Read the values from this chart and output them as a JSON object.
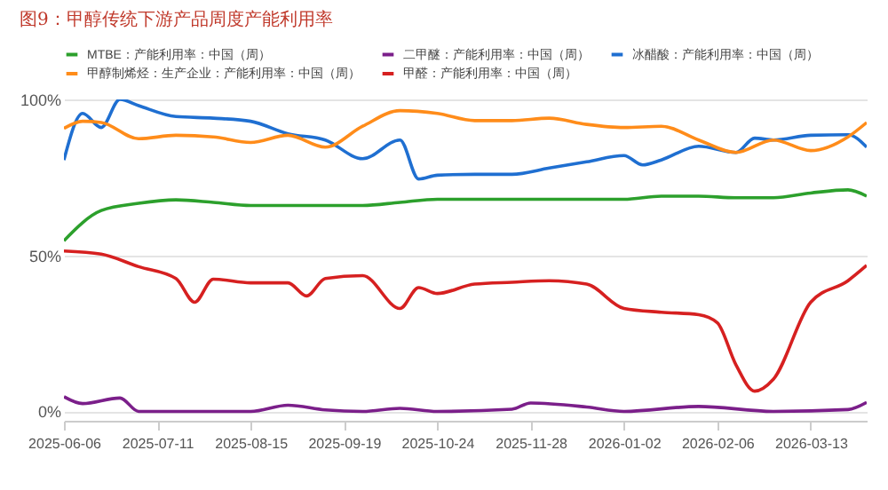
{
  "chart_data": {
    "type": "line",
    "title": "图9：甲醇传统下游产品周度产能利用率",
    "legend": "top",
    "grid": "y",
    "xlim": [
      "2025-06-06",
      "2026-04-03"
    ],
    "xticks": [
      "2025-06-06",
      "2025-07-11",
      "2025-08-15",
      "2025-09-19",
      "2025-10-24",
      "2025-11-28",
      "2026-01-02",
      "2026-02-06",
      "2026-03-13"
    ],
    "ylim": [
      -3,
      100
    ],
    "yticks": [
      {
        "value": 0,
        "label": "0%"
      },
      {
        "value": 50,
        "label": "50%"
      },
      {
        "value": 100,
        "label": "100%"
      }
    ],
    "series": [
      {
        "name": "MTBE：产能利用率：中国（周）",
        "color": "#2ca02c",
        "x": [
          "2025-06-06",
          "2025-06-20",
          "2025-07-04",
          "2025-07-18",
          "2025-08-01",
          "2025-08-15",
          "2025-08-29",
          "2025-09-12",
          "2025-09-26",
          "2025-10-10",
          "2025-10-24",
          "2025-11-07",
          "2025-11-21",
          "2025-12-05",
          "2025-12-19",
          "2026-01-02",
          "2026-01-16",
          "2026-01-30",
          "2026-02-13",
          "2026-02-27",
          "2026-03-13",
          "2026-03-27",
          "2026-04-03"
        ],
        "values": [
          54.7,
          64.4,
          66.7,
          67.8,
          67,
          66,
          66,
          66,
          66,
          67,
          68,
          68,
          68,
          68,
          68,
          68,
          69,
          69,
          68.5,
          68.5,
          70,
          71,
          69
        ]
      },
      {
        "name": "二甲醚：产能利用率：中国（周）",
        "color": "#7b1f8a",
        "x": [
          "2025-06-06",
          "2025-06-13",
          "2025-06-27",
          "2025-07-04",
          "2025-08-01",
          "2025-08-15",
          "2025-08-29",
          "2025-09-12",
          "2025-09-26",
          "2025-10-10",
          "2025-10-24",
          "2025-11-21",
          "2025-11-28",
          "2025-12-19",
          "2026-01-02",
          "2026-01-30",
          "2026-02-27",
          "2026-03-27",
          "2026-04-03"
        ],
        "values": [
          4.7,
          2.5,
          4.3,
          0,
          0,
          0,
          2,
          0.5,
          0,
          1,
          0,
          0.7,
          2.7,
          1.4,
          0,
          1.6,
          0,
          0.6,
          2.9
        ]
      },
      {
        "name": "冰醋酸：产能利用率：中国（周）",
        "color": "#1f6fd1",
        "x": [
          "2025-06-06",
          "2025-06-13",
          "2025-06-20",
          "2025-06-27",
          "2025-07-04",
          "2025-07-18",
          "2025-08-01",
          "2025-08-15",
          "2025-08-29",
          "2025-09-12",
          "2025-09-26",
          "2025-10-10",
          "2025-10-17",
          "2025-10-24",
          "2025-11-07",
          "2025-11-21",
          "2025-12-05",
          "2025-12-19",
          "2026-01-02",
          "2026-01-09",
          "2026-01-16",
          "2026-01-30",
          "2026-02-13",
          "2026-02-20",
          "2026-02-27",
          "2026-03-13",
          "2026-03-27",
          "2026-04-03"
        ],
        "values": [
          80.6,
          95.5,
          91,
          100,
          98,
          94.5,
          94,
          93,
          89,
          87,
          81,
          87,
          74.5,
          75.7,
          76,
          76,
          78,
          80,
          82,
          79,
          80.6,
          85,
          83,
          87.6,
          87,
          88.5,
          88.7,
          84.7
        ]
      },
      {
        "name": "甲醇制烯烃：生产企业：产能利用率：中国（周）",
        "color": "#ff8c1a",
        "x": [
          "2025-06-06",
          "2025-06-13",
          "2025-06-20",
          "2025-07-04",
          "2025-07-18",
          "2025-08-01",
          "2025-08-15",
          "2025-08-29",
          "2025-09-12",
          "2025-09-26",
          "2025-10-10",
          "2025-10-24",
          "2025-11-07",
          "2025-11-21",
          "2025-12-05",
          "2025-12-19",
          "2026-01-02",
          "2026-01-16",
          "2026-01-30",
          "2026-02-13",
          "2026-02-27",
          "2026-03-13",
          "2026-03-27",
          "2026-04-03"
        ],
        "values": [
          90.7,
          93,
          92.6,
          87.4,
          88.5,
          88,
          86.2,
          88.5,
          84.7,
          91.4,
          96.4,
          95.5,
          93.2,
          93.2,
          94,
          92,
          91,
          91.4,
          87,
          83,
          87,
          83.6,
          88,
          92.6
        ]
      },
      {
        "name": "甲醛：产能利用率：中国（周）",
        "color": "#d62020",
        "x": [
          "2025-06-06",
          "2025-06-20",
          "2025-07-04",
          "2025-07-18",
          "2025-07-25",
          "2025-08-01",
          "2025-08-15",
          "2025-08-29",
          "2025-09-05",
          "2025-09-12",
          "2025-09-26",
          "2025-10-10",
          "2025-10-17",
          "2025-10-24",
          "2025-11-07",
          "2025-11-21",
          "2025-12-05",
          "2025-12-19",
          "2026-01-02",
          "2026-01-16",
          "2026-01-30",
          "2026-02-06",
          "2026-02-13",
          "2026-02-20",
          "2026-02-27",
          "2026-03-13",
          "2026-03-27",
          "2026-04-03"
        ],
        "values": [
          51.4,
          50.4,
          46.4,
          42.6,
          35,
          42.4,
          41.2,
          41.2,
          37,
          42.6,
          43.5,
          33,
          39.7,
          37.8,
          40.8,
          41.4,
          41.9,
          40.8,
          33,
          31.8,
          31,
          28.4,
          14.9,
          6.5,
          10.3,
          35,
          41.9,
          46.8
        ]
      }
    ]
  }
}
